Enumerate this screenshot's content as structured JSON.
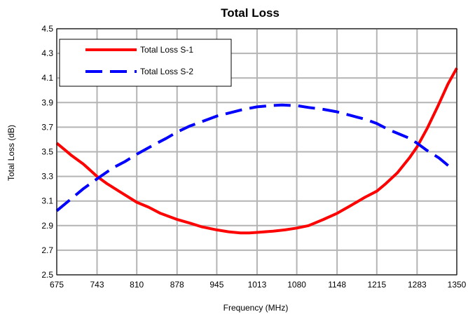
{
  "chart_data": {
    "type": "line",
    "title": "Total Loss",
    "xlabel": "Frequency (MHz)",
    "ylabel": "Total Loss (dB)",
    "xlim": [
      675,
      1350
    ],
    "ylim": [
      2.5,
      4.5
    ],
    "x_ticks": [
      675,
      743,
      810,
      878,
      945,
      1013,
      1080,
      1148,
      1215,
      1283,
      1350
    ],
    "y_ticks": [
      2.5,
      2.7,
      2.9,
      3.1,
      3.3,
      3.5,
      3.7,
      3.9,
      4.1,
      4.3,
      4.5
    ],
    "grid": true,
    "legend_position": "top-left",
    "series": [
      {
        "name": "Total Loss S-1",
        "color": "#ff0000",
        "style": "solid",
        "points": [
          [
            675,
            3.57
          ],
          [
            690,
            3.51
          ],
          [
            700,
            3.47
          ],
          [
            720,
            3.4
          ],
          [
            743,
            3.3
          ],
          [
            760,
            3.24
          ],
          [
            780,
            3.18
          ],
          [
            810,
            3.09
          ],
          [
            830,
            3.05
          ],
          [
            850,
            3.0
          ],
          [
            878,
            2.95
          ],
          [
            900,
            2.92
          ],
          [
            920,
            2.89
          ],
          [
            945,
            2.865
          ],
          [
            965,
            2.85
          ],
          [
            985,
            2.84
          ],
          [
            1000,
            2.84
          ],
          [
            1013,
            2.845
          ],
          [
            1040,
            2.855
          ],
          [
            1060,
            2.865
          ],
          [
            1080,
            2.88
          ],
          [
            1100,
            2.9
          ],
          [
            1125,
            2.95
          ],
          [
            1148,
            3.0
          ],
          [
            1170,
            3.06
          ],
          [
            1195,
            3.13
          ],
          [
            1215,
            3.18
          ],
          [
            1230,
            3.24
          ],
          [
            1250,
            3.33
          ],
          [
            1270,
            3.45
          ],
          [
            1283,
            3.54
          ],
          [
            1300,
            3.69
          ],
          [
            1318,
            3.87
          ],
          [
            1335,
            4.05
          ],
          [
            1350,
            4.18
          ]
        ]
      },
      {
        "name": "Total Loss S-2",
        "color": "#0000ff",
        "style": "dashed",
        "points": [
          [
            675,
            3.02
          ],
          [
            700,
            3.12
          ],
          [
            720,
            3.2
          ],
          [
            743,
            3.28
          ],
          [
            770,
            3.37
          ],
          [
            790,
            3.42
          ],
          [
            810,
            3.48
          ],
          [
            840,
            3.56
          ],
          [
            860,
            3.61
          ],
          [
            878,
            3.66
          ],
          [
            900,
            3.71
          ],
          [
            920,
            3.745
          ],
          [
            945,
            3.79
          ],
          [
            970,
            3.82
          ],
          [
            990,
            3.845
          ],
          [
            1013,
            3.865
          ],
          [
            1035,
            3.875
          ],
          [
            1055,
            3.88
          ],
          [
            1080,
            3.875
          ],
          [
            1100,
            3.86
          ],
          [
            1125,
            3.845
          ],
          [
            1148,
            3.825
          ],
          [
            1175,
            3.79
          ],
          [
            1195,
            3.765
          ],
          [
            1215,
            3.73
          ],
          [
            1235,
            3.68
          ],
          [
            1255,
            3.64
          ],
          [
            1270,
            3.61
          ],
          [
            1283,
            3.57
          ],
          [
            1300,
            3.51
          ],
          [
            1320,
            3.45
          ],
          [
            1340,
            3.37
          ]
        ]
      }
    ]
  }
}
